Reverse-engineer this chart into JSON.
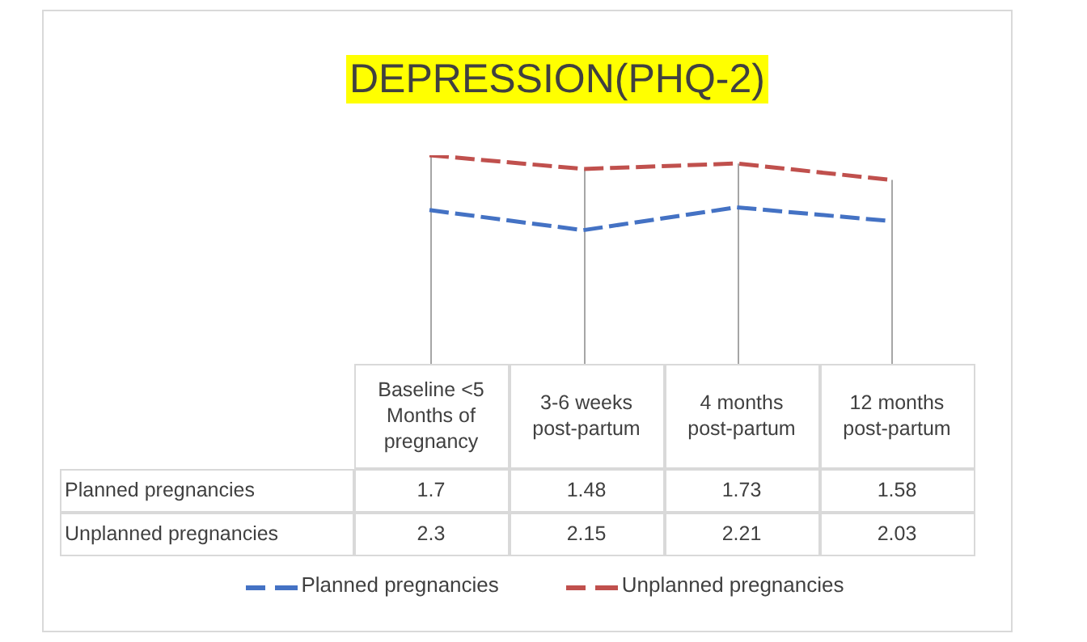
{
  "chart_data": {
    "type": "line",
    "title": "DEPRESSION(PHQ-2)",
    "categories": [
      "Baseline <5 Months of pregnancy",
      "3-6 weeks post-partum",
      "4 months post-partum",
      "12 months post-partum"
    ],
    "series": [
      {
        "name": "Planned pregnancies",
        "color": "#4472c4",
        "values": [
          1.7,
          1.48,
          1.73,
          1.58
        ]
      },
      {
        "name": "Unplanned pregnancies",
        "color": "#c0504d",
        "values": [
          2.3,
          2.15,
          2.21,
          2.03
        ]
      }
    ],
    "ylim": [
      0,
      2.3
    ],
    "tick_labels": "x",
    "data_labels": true,
    "legend": "bottom",
    "grid": "x",
    "marker": "none",
    "line_style": "dashed"
  }
}
